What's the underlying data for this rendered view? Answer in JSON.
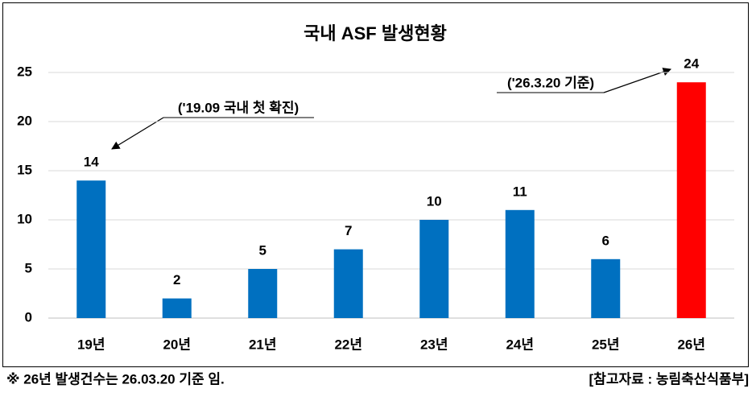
{
  "chart_data": {
    "type": "bar",
    "title": "국내 ASF 발생현황",
    "categories": [
      "19년",
      "20년",
      "21년",
      "22년",
      "23년",
      "24년",
      "25년",
      "26년"
    ],
    "values": [
      14,
      2,
      5,
      7,
      10,
      11,
      6,
      24
    ],
    "colors": [
      "#0070c0",
      "#0070c0",
      "#0070c0",
      "#0070c0",
      "#0070c0",
      "#0070c0",
      "#0070c0",
      "#ff0000"
    ],
    "ylim": [
      0,
      25
    ],
    "yticks": [
      0,
      5,
      10,
      15,
      20,
      25
    ],
    "grid": true,
    "annotations": [
      "('19.09 국내 첫 확진)",
      "('26.3.20 기준)"
    ],
    "footnote": "※ 26년 발생건수는 26.03.20 기준 임.",
    "source": "[참고자료 : 농림축산식품부]"
  }
}
